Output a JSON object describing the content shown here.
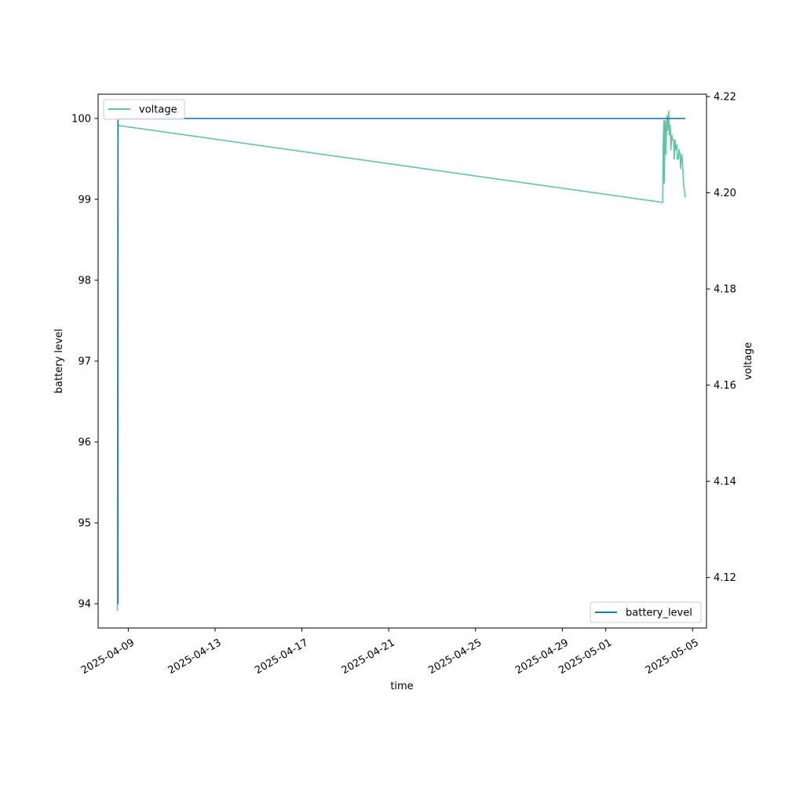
{
  "chart_data": {
    "type": "line",
    "xlabel": "time",
    "ylabel_left": "battery level",
    "ylabel_right": "voltage",
    "x_ticks": [
      "2025-04-09",
      "2025-04-13",
      "2025-04-17",
      "2025-04-21",
      "2025-04-25",
      "2025-04-29",
      "2025-05-01",
      "2025-05-05"
    ],
    "y_left_ticks": [
      94,
      95,
      96,
      97,
      98,
      99,
      100
    ],
    "y_right_ticks": [
      "4.12",
      "4.14",
      "4.16",
      "4.18",
      "4.20",
      "4.22"
    ],
    "xlim": [
      "2025-04-07T14:40",
      "2025-05-05T15:25"
    ],
    "ylim_left": [
      93.7,
      100.3
    ],
    "ylim_right": [
      4.1095,
      4.2205
    ],
    "grid": false,
    "series": [
      {
        "name": "battery_level",
        "axis": "left",
        "color": "#1f77b4",
        "legend_position": "lower-right",
        "x": [
          "2025-04-08T12:00",
          "2025-04-08T12:30",
          "2025-04-08T12:36",
          "2025-05-04T16:00"
        ],
        "y": [
          94,
          94,
          100,
          100
        ]
      },
      {
        "name": "voltage",
        "axis": "right",
        "color": "#66c2a5",
        "legend_position": "upper-left",
        "x": [
          "2025-04-08T12:00",
          "2025-04-08T12:06",
          "2025-04-08T12:18",
          "2025-04-08T12:36",
          "2025-04-08T12:48",
          "2025-05-03T15:00",
          "2025-05-03T15:30",
          "2025-05-03T16:20",
          "2025-05-03T16:40",
          "2025-05-03T17:50",
          "2025-05-03T18:30",
          "2025-05-03T19:40",
          "2025-05-03T20:20",
          "2025-05-03T21:40",
          "2025-05-03T22:10",
          "2025-05-03T23:20",
          "2025-05-04T00:00",
          "2025-05-04T01:10",
          "2025-05-04T02:00",
          "2025-05-04T03:00",
          "2025-05-04T03:40",
          "2025-05-04T04:40",
          "2025-05-04T05:20",
          "2025-05-04T06:30",
          "2025-05-04T07:10",
          "2025-05-04T08:20",
          "2025-05-04T09:00",
          "2025-05-04T10:10",
          "2025-05-04T10:50",
          "2025-05-04T12:00",
          "2025-05-04T12:40",
          "2025-05-04T14:00",
          "2025-05-04T14:40",
          "2025-05-04T16:00"
        ],
        "y": [
          4.113,
          4.135,
          4.18,
          4.21,
          4.214,
          4.198,
          4.21,
          4.215,
          4.202,
          4.215,
          4.208,
          4.216,
          4.213,
          4.217,
          4.212,
          4.214,
          4.209,
          4.212,
          4.211,
          4.211,
          4.207,
          4.211,
          4.209,
          4.21,
          4.207,
          4.207,
          4.209,
          4.208,
          4.205,
          4.208,
          4.207,
          4.202,
          4.201,
          4.199
        ]
      }
    ]
  }
}
